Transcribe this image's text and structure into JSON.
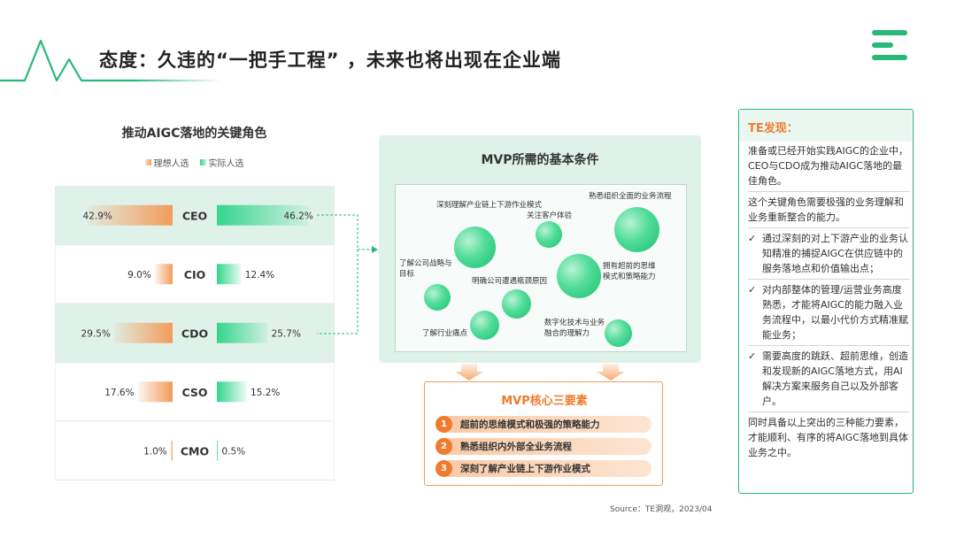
{
  "header": {
    "title": "态度：久违的“一把手工程” ，未来也将出现在企业端"
  },
  "colors": {
    "ideal": "#f39b5a",
    "actual": "#34d58c",
    "accent_green": "#28b877",
    "accent_orange": "#f07b2e"
  },
  "chart_data": {
    "type": "bar",
    "title": "推动AIGC落地的关键角色",
    "categories": [
      "CEO",
      "CIO",
      "CDO",
      "CSO",
      "CMO"
    ],
    "series": [
      {
        "name": "理想人选",
        "values": [
          42.9,
          9.0,
          29.5,
          17.6,
          1.0
        ],
        "labels": [
          "42.9%",
          "9.0%",
          "29.5%",
          "17.6%",
          "1.0%"
        ]
      },
      {
        "name": "实际人选",
        "values": [
          46.2,
          12.4,
          25.7,
          15.2,
          0.5
        ],
        "labels": [
          "46.2%",
          "12.4%",
          "25.7%",
          "15.2%",
          "0.5%"
        ]
      }
    ],
    "highlighted_rows": [
      "CEO",
      "CDO"
    ]
  },
  "mvp": {
    "title": "MVP所需的基本条件",
    "items": [
      "深刻理解产业链上下游作业模式",
      "关注客户体验",
      "熟悉组织全面的业务流程",
      "了解公司战略与目标",
      "明确公司遭遇瓶颈原因",
      "拥有超前的思维模式和策略能力",
      "了解行业痛点",
      "数字化技术与业务融合的理解力"
    ]
  },
  "core": {
    "title": "MVP核心三要素",
    "items": [
      {
        "num": "1",
        "text": "超前的思维模式和极强的策略能力"
      },
      {
        "num": "2",
        "text": "熟悉组织内外部全业务流程"
      },
      {
        "num": "3",
        "text": "深刻了解产业链上下游作业模式"
      }
    ]
  },
  "te": {
    "title": "TE发现：",
    "para1": "准备或已经开始实践AIGC的企业中，CEO与CDO成为推动AIGC落地的最佳角色。",
    "para2": "这个关键角色需要极强的业务理解和业务重新整合的能力。",
    "checks": [
      "通过深刻的对上下游产业的业务认知精准的捕捉AIGC在供应链中的服务落地点和价值输出点；",
      "对内部整体的管理/运营业务高度熟悉，才能将AIGC的能力融入业务流程中，以最小代价方式精准赋能业务；",
      "需要高度的跳跃、超前思维，创造和发现新的AIGC落地方式，用AI解决方案来服务自己以及外部客户。"
    ],
    "check_mark": "✓",
    "para3": "同时具备以上突出的三种能力要素，才能顺利、有序的将AIGC落地到具体业务之中。"
  },
  "source": "Source：TE洞观，2023/04"
}
